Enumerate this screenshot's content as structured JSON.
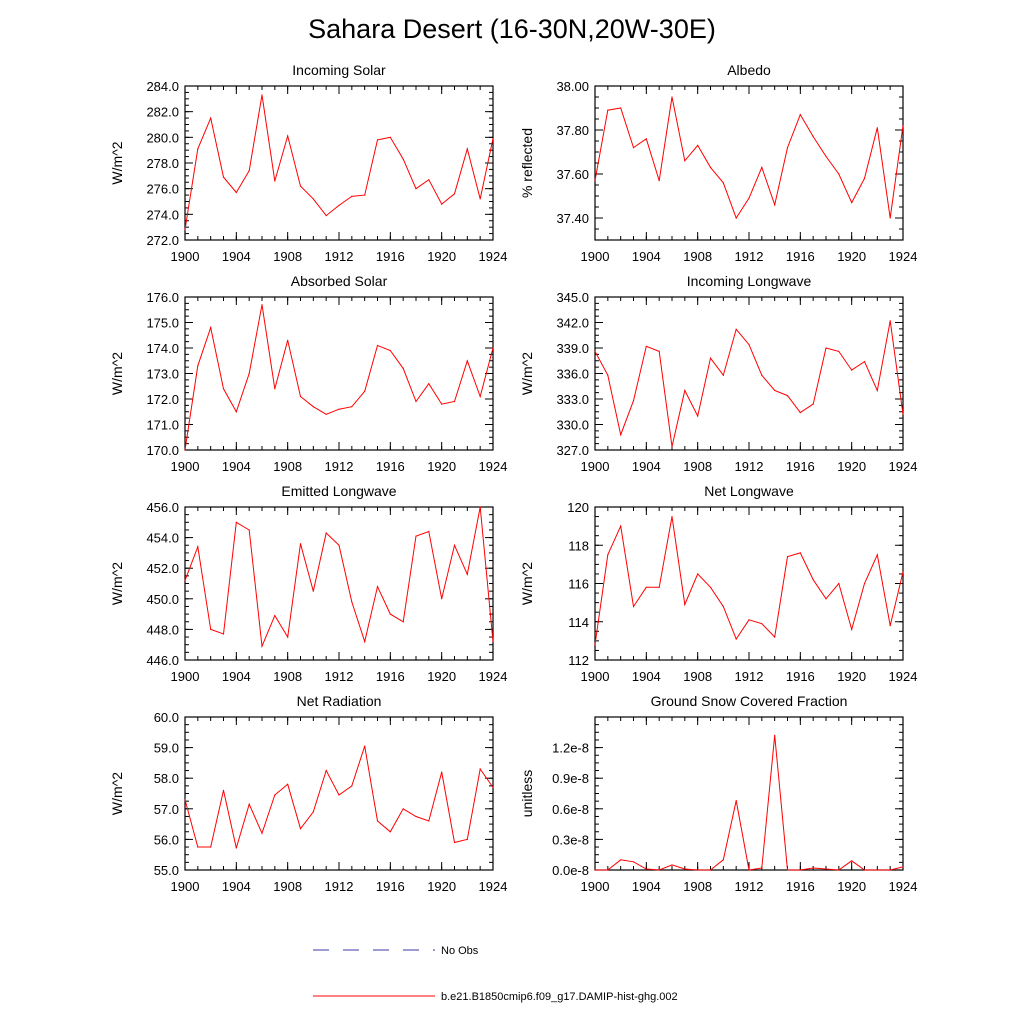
{
  "figure_title": "Sahara Desert (16-30N,20W-30E)",
  "colors": {
    "series": "#ff0000",
    "obs": "#3a3aa0",
    "axis": "#000000"
  },
  "legend": {
    "obs_label": "No Obs",
    "model_label": "b.e21.B1850cmip6.f09_g17.DAMIP-hist-ghg.002"
  },
  "chart_data": [
    {
      "type": "line",
      "title": "Incoming Solar",
      "ylabel": "W/m^2",
      "xlim": [
        1900,
        1924
      ],
      "ylim": [
        272,
        284
      ],
      "yticks": [
        "272.0",
        "274.0",
        "276.0",
        "278.0",
        "280.0",
        "282.0",
        "284.0"
      ],
      "xticks": [
        "1900",
        "1904",
        "1908",
        "1912",
        "1916",
        "1920",
        "1924"
      ],
      "x": [
        1900,
        1901,
        1902,
        1903,
        1904,
        1905,
        1906,
        1907,
        1908,
        1909,
        1910,
        1911,
        1912,
        1913,
        1914,
        1915,
        1916,
        1917,
        1918,
        1919,
        1920,
        1921,
        1922,
        1923,
        1924
      ],
      "values": [
        272.8,
        279.1,
        281.5,
        276.9,
        275.7,
        277.4,
        283.3,
        276.6,
        280.1,
        276.2,
        275.2,
        273.9,
        274.7,
        275.4,
        275.5,
        279.8,
        280.0,
        278.3,
        276.0,
        276.7,
        274.8,
        275.6,
        279.1,
        275.2,
        279.9
      ]
    },
    {
      "type": "line",
      "title": "Albedo",
      "ylabel": "% reflected",
      "xlim": [
        1900,
        1924
      ],
      "ylim": [
        37.3,
        38.0
      ],
      "yticks": [
        "37.40",
        "37.60",
        "37.80",
        "38.00"
      ],
      "xticks": [
        "1900",
        "1904",
        "1908",
        "1912",
        "1916",
        "1920",
        "1924"
      ],
      "x": [
        1900,
        1901,
        1902,
        1903,
        1904,
        1905,
        1906,
        1907,
        1908,
        1909,
        1910,
        1911,
        1912,
        1913,
        1914,
        1915,
        1916,
        1917,
        1918,
        1919,
        1920,
        1921,
        1922,
        1923,
        1924
      ],
      "values": [
        37.57,
        37.89,
        37.9,
        37.72,
        37.76,
        37.57,
        37.95,
        37.66,
        37.73,
        37.63,
        37.56,
        37.4,
        37.49,
        37.63,
        37.46,
        37.72,
        37.87,
        37.77,
        37.68,
        37.6,
        37.47,
        37.58,
        37.81,
        37.4,
        37.82
      ]
    },
    {
      "type": "line",
      "title": "Absorbed Solar",
      "ylabel": "W/m^2",
      "xlim": [
        1900,
        1924
      ],
      "ylim": [
        170,
        176
      ],
      "yticks": [
        "170.0",
        "171.0",
        "172.0",
        "173.0",
        "174.0",
        "175.0",
        "176.0"
      ],
      "xticks": [
        "1900",
        "1904",
        "1908",
        "1912",
        "1916",
        "1920",
        "1924"
      ],
      "x": [
        1900,
        1901,
        1902,
        1903,
        1904,
        1905,
        1906,
        1907,
        1908,
        1909,
        1910,
        1911,
        1912,
        1913,
        1914,
        1915,
        1916,
        1917,
        1918,
        1919,
        1920,
        1921,
        1922,
        1923,
        1924
      ],
      "values": [
        170.0,
        173.3,
        174.8,
        172.4,
        171.5,
        173.0,
        175.7,
        172.4,
        174.3,
        172.1,
        171.7,
        171.4,
        171.6,
        171.7,
        172.3,
        174.1,
        173.9,
        173.2,
        171.9,
        172.6,
        171.8,
        171.9,
        173.5,
        172.1,
        174.0
      ]
    },
    {
      "type": "line",
      "title": "Incoming Longwave",
      "ylabel": "W/m^2",
      "xlim": [
        1900,
        1924
      ],
      "ylim": [
        327,
        345
      ],
      "yticks": [
        "327.0",
        "330.0",
        "333.0",
        "336.0",
        "339.0",
        "342.0",
        "345.0"
      ],
      "xticks": [
        "1900",
        "1904",
        "1908",
        "1912",
        "1916",
        "1920",
        "1924"
      ],
      "x": [
        1900,
        1901,
        1902,
        1903,
        1904,
        1905,
        1906,
        1907,
        1908,
        1909,
        1910,
        1911,
        1912,
        1913,
        1914,
        1915,
        1916,
        1917,
        1918,
        1919,
        1920,
        1921,
        1922,
        1923,
        1924
      ],
      "values": [
        338.6,
        335.8,
        328.8,
        332.8,
        339.2,
        338.6,
        327.4,
        334.0,
        331.0,
        337.8,
        335.8,
        341.2,
        339.4,
        335.8,
        334.0,
        333.4,
        331.4,
        332.4,
        339.0,
        338.6,
        336.4,
        337.4,
        334.0,
        342.2,
        331.2
      ]
    },
    {
      "type": "line",
      "title": "Emitted Longwave",
      "ylabel": "W/m^2",
      "xlim": [
        1900,
        1924
      ],
      "ylim": [
        446,
        456
      ],
      "yticks": [
        "446.0",
        "448.0",
        "450.0",
        "452.0",
        "454.0",
        "456.0"
      ],
      "xticks": [
        "1900",
        "1904",
        "1908",
        "1912",
        "1916",
        "1920",
        "1924"
      ],
      "x": [
        1900,
        1901,
        1902,
        1903,
        1904,
        1905,
        1906,
        1907,
        1908,
        1909,
        1910,
        1911,
        1912,
        1913,
        1914,
        1915,
        1916,
        1917,
        1918,
        1919,
        1920,
        1921,
        1922,
        1923,
        1924
      ],
      "values": [
        451.2,
        453.4,
        448.0,
        447.7,
        455.0,
        454.5,
        446.9,
        448.9,
        447.5,
        453.6,
        450.5,
        454.3,
        453.5,
        449.8,
        447.2,
        450.8,
        449.0,
        448.5,
        454.1,
        454.4,
        450.0,
        453.5,
        451.6,
        456.0,
        447.2
      ]
    },
    {
      "type": "line",
      "title": "Net Longwave",
      "ylabel": "W/m^2",
      "xlim": [
        1900,
        1924
      ],
      "ylim": [
        112,
        120
      ],
      "yticks": [
        "112",
        "114",
        "116",
        "118",
        "120"
      ],
      "xticks": [
        "1900",
        "1904",
        "1908",
        "1912",
        "1916",
        "1920",
        "1924"
      ],
      "x": [
        1900,
        1901,
        1902,
        1903,
        1904,
        1905,
        1906,
        1907,
        1908,
        1909,
        1910,
        1911,
        1912,
        1913,
        1914,
        1915,
        1916,
        1917,
        1918,
        1919,
        1920,
        1921,
        1922,
        1923,
        1924
      ],
      "values": [
        112.8,
        117.5,
        119.0,
        114.8,
        115.8,
        115.8,
        119.5,
        114.9,
        116.5,
        115.8,
        114.8,
        113.1,
        114.1,
        113.9,
        113.2,
        117.4,
        117.6,
        116.2,
        115.2,
        116.0,
        113.6,
        116.0,
        117.5,
        113.8,
        116.6
      ]
    },
    {
      "type": "line",
      "title": "Net Radiation",
      "ylabel": "W/m^2",
      "xlim": [
        1900,
        1924
      ],
      "ylim": [
        55,
        60
      ],
      "yticks": [
        "55.0",
        "56.0",
        "57.0",
        "58.0",
        "59.0",
        "60.0"
      ],
      "xticks": [
        "1900",
        "1904",
        "1908",
        "1912",
        "1916",
        "1920",
        "1924"
      ],
      "x": [
        1900,
        1901,
        1902,
        1903,
        1904,
        1905,
        1906,
        1907,
        1908,
        1909,
        1910,
        1911,
        1912,
        1913,
        1914,
        1915,
        1916,
        1917,
        1918,
        1919,
        1920,
        1921,
        1922,
        1923,
        1924
      ],
      "values": [
        57.3,
        55.75,
        55.75,
        57.6,
        55.72,
        57.15,
        56.2,
        57.45,
        57.8,
        56.35,
        56.9,
        58.25,
        57.45,
        57.75,
        59.05,
        56.6,
        56.25,
        57.0,
        56.75,
        56.6,
        58.2,
        55.9,
        56.0,
        58.3,
        57.7
      ]
    },
    {
      "type": "line",
      "title": "Ground Snow Covered Fraction",
      "ylabel": "unitless",
      "xlim": [
        1900,
        1924
      ],
      "ylim": [
        0,
        1.5
      ],
      "yticks": [
        "0.0e-8",
        "0.3e-8",
        "0.6e-8",
        "0.9e-8",
        "1.2e-8"
      ],
      "ytick_values": [
        0,
        0.3,
        0.6,
        0.9,
        1.2
      ],
      "xticks": [
        "1900",
        "1904",
        "1908",
        "1912",
        "1916",
        "1920",
        "1924"
      ],
      "x": [
        1900,
        1901,
        1902,
        1903,
        1904,
        1905,
        1906,
        1907,
        1908,
        1909,
        1910,
        1911,
        1912,
        1913,
        1914,
        1915,
        1916,
        1917,
        1918,
        1919,
        1920,
        1921,
        1922,
        1923,
        1924
      ],
      "values": [
        0.0,
        0.0,
        0.1,
        0.08,
        0.01,
        0.0,
        0.05,
        0.01,
        0.0,
        0.0,
        0.1,
        0.68,
        0.0,
        0.02,
        1.32,
        0.0,
        0.0,
        0.02,
        0.01,
        0.0,
        0.09,
        0.0,
        0.0,
        0.0,
        0.03
      ]
    }
  ]
}
